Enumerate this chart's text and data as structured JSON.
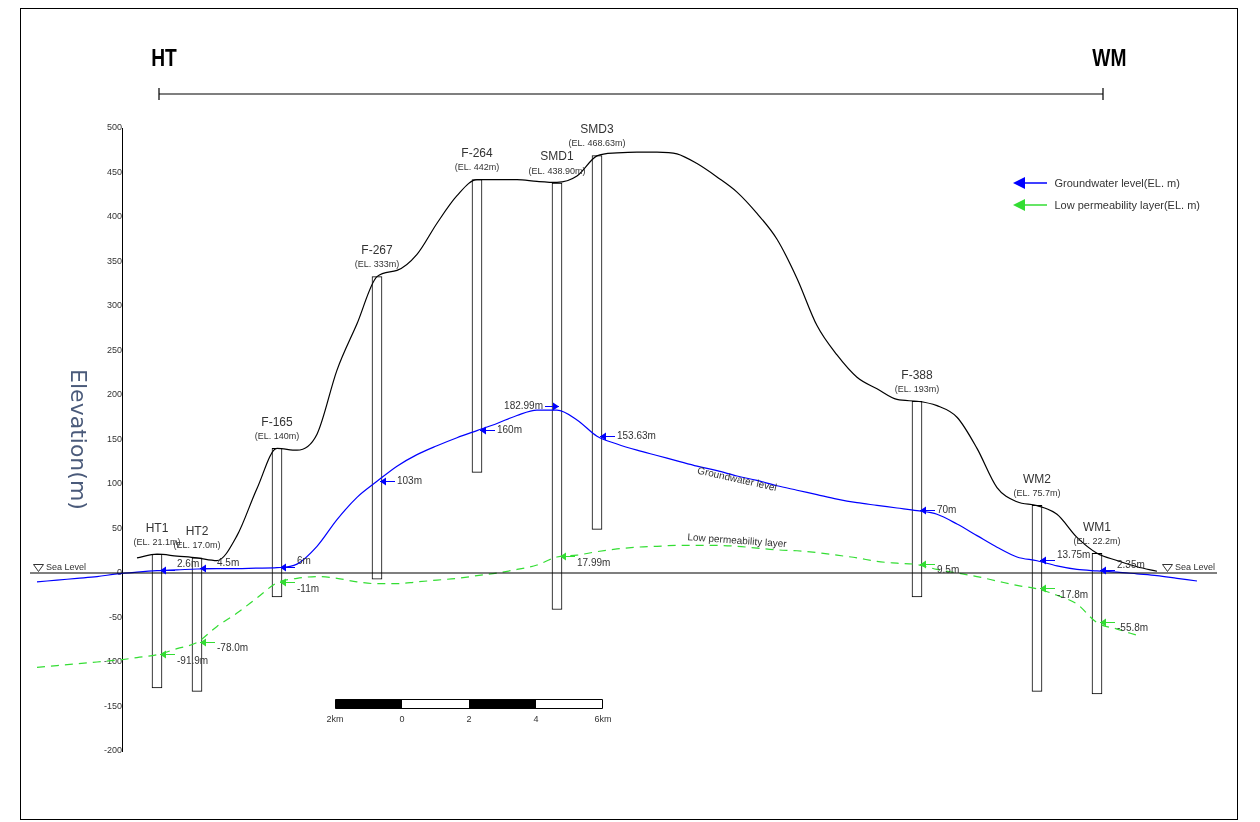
{
  "chart_data": {
    "type": "line",
    "ylabel": "Elevation(m)",
    "ylim": [
      -200,
      500
    ],
    "yticks": [
      -200,
      -150,
      -100,
      -50,
      0,
      50,
      100,
      150,
      200,
      250,
      300,
      350,
      400,
      450,
      500
    ],
    "grid": false,
    "legend": "top right",
    "marker": "none",
    "categories": [
      null,
      null,
      null,
      null,
      null,
      null,
      null,
      null,
      null,
      null,
      null,
      null,
      null,
      null,
      null,
      null,
      null,
      null,
      null,
      null,
      null,
      null,
      null,
      null,
      null,
      null,
      null,
      null,
      null,
      null,
      null,
      null,
      null,
      null,
      null,
      null,
      null,
      null,
      null,
      null,
      null,
      null,
      null,
      null,
      null,
      null,
      null,
      null,
      null,
      null,
      null,
      null,
      null,
      null,
      null,
      null,
      null,
      null,
      null,
      null
    ],
    "series": [
      {
        "color": "#000000",
        "values": [
          null,
          null,
          null,
          null,
          null,
          17,
          21.1,
          19,
          17.0,
          14,
          42,
          95,
          140,
          138,
          156,
          228,
          280,
          333,
          340,
          358,
          393,
          424,
          442,
          442,
          442,
          440,
          438.9,
          446,
          468.63,
          472,
          473,
          473,
          471,
          460,
          445,
          428,
          404,
          375,
          331,
          278,
          245,
          220,
          207,
          195,
          193,
          188,
          175,
          140,
          96,
          80,
          75.7,
          66,
          40,
          22.2,
          14,
          7,
          2,
          null,
          null,
          null
        ]
      },
      {
        "name": "Groundwater level(EL. m)",
        "color": "#0000ff",
        "line_style": "solid",
        "values": [
          -10,
          -8,
          -6,
          -4,
          -1,
          1,
          2.6,
          3.5,
          4.5,
          5,
          5,
          5.5,
          6,
          10,
          30,
          60,
          85,
          103,
          120,
          133,
          143,
          152,
          160,
          168,
          177,
          183,
          182.99,
          172,
          153.63,
          145,
          138,
          132,
          126,
          120,
          115,
          109,
          104,
          98,
          93,
          88,
          83,
          79,
          76,
          73,
          70,
          66,
          55,
          42,
          29,
          18,
          13.75,
          8,
          4,
          2.35,
          1,
          -1,
          -3,
          -6,
          -9,
          null
        ]
      },
      {
        "name": "Low permeability layer(EL. m)",
        "color": "#33dd33",
        "line_style": "dashed",
        "values": [
          -106,
          -104,
          -102,
          -100,
          -98,
          -95,
          -91.9,
          -85,
          -78.0,
          -60,
          -45,
          -28,
          -11,
          -6,
          -4,
          -6,
          -10,
          -12,
          -12,
          -10,
          -8,
          -6,
          -3,
          0,
          4,
          9,
          17.99,
          20,
          24,
          27,
          29,
          30,
          31,
          31,
          31,
          30,
          28,
          26,
          25,
          23,
          20,
          17,
          13,
          11,
          9.5,
          4,
          0,
          -4,
          -9,
          -14,
          -17.8,
          -25,
          -35,
          -55.8,
          -63,
          -70,
          null,
          null,
          null,
          null
        ]
      },
      {
        "type": "bar",
        "color": "#ffffff",
        "values": [
          null,
          null,
          null,
          null,
          null,
          null,
          150,
          null,
          150,
          null,
          null,
          null,
          167,
          null,
          null,
          null,
          null,
          340,
          null,
          null,
          null,
          null,
          329,
          null,
          null,
          null,
          479,
          null,
          420,
          null,
          null,
          null,
          null,
          null,
          null,
          null,
          null,
          null,
          null,
          null,
          null,
          null,
          null,
          null,
          220,
          null,
          null,
          null,
          null,
          null,
          209,
          null,
          null,
          158,
          null,
          null,
          null,
          null,
          null,
          null
        ],
        "base": [
          null,
          null,
          null,
          null,
          null,
          null,
          -129,
          null,
          -133,
          null,
          null,
          null,
          -27,
          null,
          null,
          null,
          null,
          -7,
          null,
          null,
          null,
          null,
          113,
          null,
          null,
          null,
          -41,
          null,
          49,
          null,
          null,
          null,
          null,
          null,
          null,
          null,
          null,
          null,
          null,
          null,
          null,
          null,
          null,
          null,
          -27,
          null,
          null,
          null,
          null,
          null,
          -133,
          null,
          null,
          -136,
          null,
          null,
          null,
          null,
          null,
          null
        ]
      }
    ],
    "ref_lines": [
      {
        "axis": "y",
        "value": 0,
        "label": "Sea Level",
        "color": "#000000"
      }
    ],
    "annotations": [
      "HT",
      "WM",
      "HT1",
      "HT2",
      "F-165",
      "F-267",
      "F-264",
      "SMD1",
      "SMD3",
      "F-388",
      "WM2",
      "WM1",
      "(EL. 21.1m)",
      "(EL. 17.0m)",
      "(EL. 140m)",
      "(EL. 333m)",
      "(EL. 442m)",
      "(EL. 438.90m)",
      "(EL. 468.63m)",
      "(EL. 193m)",
      "(EL. 75.7m)",
      "(EL. 22.2m)",
      "2.6m",
      "4.5m",
      "6m",
      "103m",
      "160m",
      "182.99m",
      "153.63m",
      "70m",
      "13.75m",
      "2.35m",
      "-91.9m",
      "-78.0m",
      "-11m",
      "17.99m",
      "9.5m",
      "-17.8m",
      "-55.8m",
      "Groundwater level",
      "Low permeability layer",
      "Sea Level",
      "2km",
      "0",
      "2",
      "4",
      "6km"
    ]
  }
}
